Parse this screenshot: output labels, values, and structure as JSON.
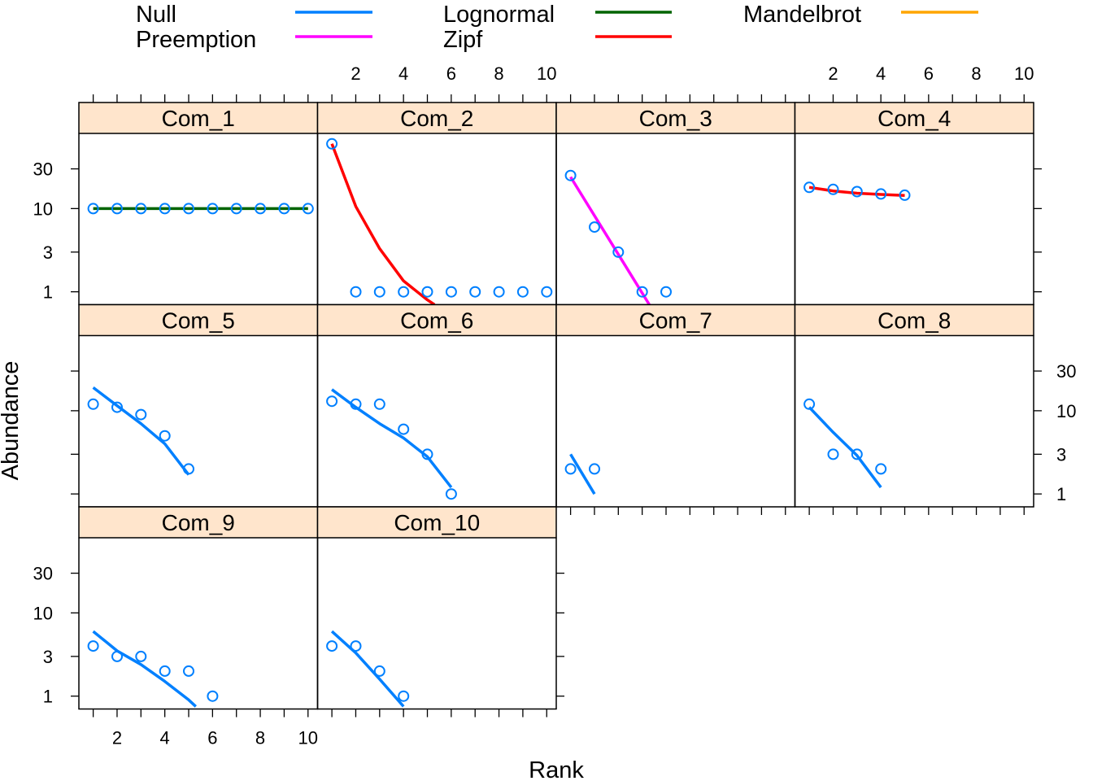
{
  "chart_data": {
    "type": "line",
    "layout": "trellis 4x3 (lattice)",
    "xlabel": "Rank",
    "ylabel": "Abundance",
    "xlim": [
      0.4,
      10.4
    ],
    "ylim_log": [
      0.7,
      80
    ],
    "y_scale": "log",
    "x_ticks": [
      2,
      4,
      6,
      8,
      10
    ],
    "y_ticks": [
      1,
      3,
      10,
      30
    ],
    "legend": {
      "placement": "top",
      "entries": [
        {
          "name": "Null",
          "color": "#0080ff"
        },
        {
          "name": "Lognormal",
          "color": "#006400"
        },
        {
          "name": "Mandelbrot",
          "color": "#ffa500"
        },
        {
          "name": "Preemption",
          "color": "#ff00ff"
        },
        {
          "name": "Zipf",
          "color": "#ff0000"
        }
      ]
    },
    "point_color": "#0080ff",
    "panels": [
      {
        "label": "Com_1",
        "rank": [
          1,
          2,
          3,
          4,
          5,
          6,
          7,
          8,
          9,
          10
        ],
        "abundance": [
          10,
          10,
          10,
          10,
          10,
          10,
          10,
          10,
          10,
          10
        ],
        "fit": {
          "model": "Lognormal",
          "x": [
            1,
            10
          ],
          "y": [
            10,
            10
          ]
        }
      },
      {
        "label": "Com_2",
        "rank": [
          1,
          2,
          3,
          4,
          5,
          6,
          7,
          8,
          9,
          10
        ],
        "abundance": [
          60,
          1,
          1,
          1,
          1,
          1,
          1,
          1,
          1,
          1
        ],
        "fit": {
          "model": "Zipf",
          "x": [
            1,
            2,
            3,
            4,
            5,
            5.3
          ],
          "y": [
            60,
            10.6,
            3.3,
            1.35,
            0.8,
            0.7
          ]
        }
      },
      {
        "label": "Com_3",
        "rank": [
          1,
          2,
          3,
          4,
          5
        ],
        "abundance": [
          25,
          6,
          3,
          1,
          1
        ],
        "fit": {
          "model": "Preemption",
          "x": [
            1,
            4.3
          ],
          "y": [
            24,
            0.7
          ]
        }
      },
      {
        "label": "Com_4",
        "rank": [
          1,
          2,
          3,
          4,
          5
        ],
        "abundance": [
          18,
          17,
          16,
          15,
          14.5
        ],
        "fit": {
          "model": "Zipf",
          "x": [
            1,
            2,
            3,
            4,
            5
          ],
          "y": [
            18,
            16.3,
            15.3,
            14.8,
            14.4
          ]
        }
      },
      {
        "label": "Com_5",
        "rank": [
          1,
          2,
          3,
          4,
          5
        ],
        "abundance": [
          12,
          11,
          9,
          5,
          2
        ],
        "fit": {
          "model": "Null",
          "x": [
            1,
            2,
            3,
            4,
            5
          ],
          "y": [
            19,
            11.5,
            7,
            4,
            1.7
          ]
        }
      },
      {
        "label": "Com_6",
        "rank": [
          1,
          2,
          3,
          4,
          5,
          6
        ],
        "abundance": [
          13,
          12,
          12,
          6,
          3,
          1
        ],
        "fit": {
          "model": "Null",
          "x": [
            1,
            2,
            3,
            4,
            5,
            6
          ],
          "y": [
            18,
            11,
            7,
            4.7,
            2.8,
            1.2
          ]
        }
      },
      {
        "label": "Com_7",
        "rank": [
          1,
          2
        ],
        "abundance": [
          2,
          2
        ],
        "fit": {
          "model": "Null",
          "x": [
            1,
            2
          ],
          "y": [
            3,
            1
          ]
        }
      },
      {
        "label": "Com_8",
        "rank": [
          1,
          2,
          3,
          4
        ],
        "abundance": [
          12,
          3,
          3,
          2
        ],
        "fit": {
          "model": "Null",
          "x": [
            1,
            2,
            3,
            4
          ],
          "y": [
            11,
            5.5,
            2.9,
            1.2
          ]
        }
      },
      {
        "label": "Com_9",
        "rank": [
          1,
          2,
          3,
          4,
          5,
          6
        ],
        "abundance": [
          4,
          3,
          3,
          2,
          2,
          1
        ],
        "fit": {
          "model": "Null",
          "x": [
            1,
            2,
            3,
            4,
            5,
            5.3
          ],
          "y": [
            6,
            3.5,
            2.4,
            1.5,
            0.9,
            0.75
          ]
        }
      },
      {
        "label": "Com_10",
        "rank": [
          1,
          2,
          3,
          4
        ],
        "abundance": [
          4,
          4,
          2,
          1
        ],
        "fit": {
          "model": "Null",
          "x": [
            1,
            2,
            3,
            4
          ],
          "y": [
            6,
            3.3,
            1.6,
            0.75
          ]
        }
      }
    ]
  }
}
